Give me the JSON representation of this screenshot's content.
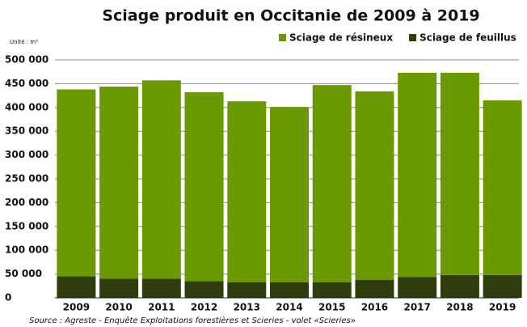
{
  "chart_data": {
    "type": "stacked_bar",
    "title": "Sciage produit en Occitanie de 2009 à 2019",
    "unit_label": "Unité : m³",
    "source": "Source : Agreste - Enquête Exploitations forestières et Scieries - volet «Scieries»",
    "categories": [
      "2009",
      "2010",
      "2011",
      "2012",
      "2013",
      "2014",
      "2015",
      "2016",
      "2017",
      "2018",
      "2019"
    ],
    "series": [
      {
        "name": "Sciage de feuillus",
        "color": "#2f3d0c",
        "values": [
          45000,
          40000,
          40000,
          35000,
          33000,
          33000,
          33000,
          38000,
          44000,
          48000,
          48000
        ]
      },
      {
        "name": "Sciage de résineux",
        "color": "#6a9a00",
        "values": [
          393000,
          404000,
          417000,
          397000,
          380000,
          368000,
          414000,
          396000,
          429000,
          425000,
          367000
        ]
      }
    ],
    "legend_order": [
      1,
      0
    ],
    "ylim": [
      0,
      500000
    ],
    "yticks": [
      0,
      {
        "value": 50000,
        "label": "50 000"
      },
      {
        "value": 100000,
        "label": "100 000"
      },
      {
        "value": 150000,
        "label": "150 000"
      },
      {
        "value": 200000,
        "label": "200 000"
      },
      {
        "value": 250000,
        "label": "250 000"
      },
      {
        "value": 300000,
        "label": "300 000"
      },
      {
        "value": 350000,
        "label": "350 000"
      },
      {
        "value": 400000,
        "label": "400 000"
      },
      {
        "value": 450000,
        "label": "450 000"
      },
      {
        "value": 500000,
        "label": "500 000"
      }
    ],
    "grid": true
  }
}
